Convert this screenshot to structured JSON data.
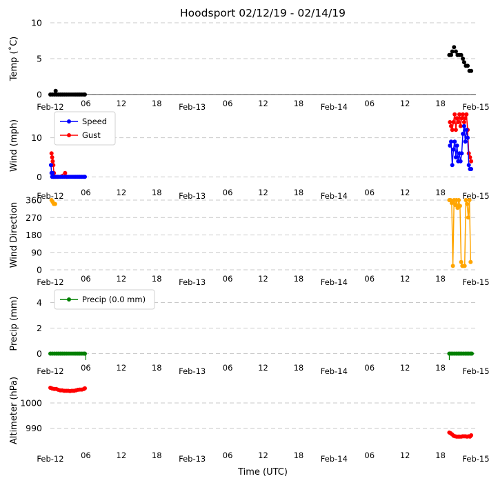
{
  "chart_data": {
    "title": "Hoodsport 02/12/19 - 02/14/19",
    "xlabel": "Time (UTC)",
    "x_unit": "hours since Feb-12 00:00 UTC",
    "x_range": [
      0,
      72
    ],
    "x_ticks": [
      {
        "h": 0,
        "label": "Feb-12"
      },
      {
        "h": 6,
        "label": "06"
      },
      {
        "h": 12,
        "label": "12"
      },
      {
        "h": 18,
        "label": "18"
      },
      {
        "h": 24,
        "label": "Feb-13"
      },
      {
        "h": 30,
        "label": "06"
      },
      {
        "h": 36,
        "label": "12"
      },
      {
        "h": 42,
        "label": "18"
      },
      {
        "h": 48,
        "label": "Feb-14"
      },
      {
        "h": 54,
        "label": "06"
      },
      {
        "h": 60,
        "label": "12"
      },
      {
        "h": 66,
        "label": "18"
      },
      {
        "h": 72,
        "label": "Feb-15"
      }
    ],
    "panels": [
      {
        "type": "scatter",
        "ylabel": "Temp ($^\\circ$C)",
        "ylabel_display": "Temp (˚C)",
        "ylim": [
          0,
          10
        ],
        "yticks": [
          0,
          5,
          10
        ],
        "grid": true,
        "series": [
          {
            "color": "#000000",
            "line": false,
            "points": [
              [
                0.0,
                0
              ],
              [
                0.33,
                0
              ],
              [
                0.67,
                0
              ],
              [
                0.9,
                0.5
              ],
              [
                1.0,
                0
              ],
              [
                1.33,
                0
              ],
              [
                1.67,
                0
              ],
              [
                2.0,
                0
              ],
              [
                2.33,
                0
              ],
              [
                2.67,
                0
              ],
              [
                3.0,
                0
              ],
              [
                3.33,
                0
              ],
              [
                3.67,
                0
              ],
              [
                4.0,
                0
              ],
              [
                4.33,
                0
              ],
              [
                4.67,
                0
              ],
              [
                5.0,
                0
              ],
              [
                5.33,
                0
              ],
              [
                5.67,
                0
              ],
              [
                5.83,
                0
              ],
              [
                67.5,
                5.5
              ],
              [
                67.8,
                5.5
              ],
              [
                68.0,
                6.0
              ],
              [
                68.3,
                6.6
              ],
              [
                68.6,
                6.0
              ],
              [
                68.9,
                5.5
              ],
              [
                69.2,
                5.5
              ],
              [
                69.5,
                5.5
              ],
              [
                69.8,
                5.0
              ],
              [
                70.0,
                4.5
              ],
              [
                70.3,
                4.0
              ],
              [
                70.6,
                4.0
              ],
              [
                70.9,
                3.3
              ],
              [
                71.2,
                3.3
              ]
            ]
          }
        ]
      },
      {
        "type": "line",
        "ylabel": "Wind (mph)",
        "ylim": [
          -1,
          17
        ],
        "yticks": [
          0,
          10
        ],
        "grid": true,
        "legend": "top-left",
        "series": [
          {
            "name": "Gust",
            "color": "#ff0000",
            "line": true,
            "points": [
              [
                0.2,
                6
              ],
              [
                0.3,
                5
              ],
              [
                0.4,
                4
              ],
              [
                0.5,
                3
              ],
              [
                0.6,
                1
              ],
              [
                0.8,
                0
              ],
              [
                1.2,
                0
              ],
              [
                2.5,
                1
              ],
              [
                2.8,
                0
              ]
            ]
          },
          {
            "name": "Speed",
            "color": "#0000ff",
            "line": true,
            "points": [
              [
                0.1,
                3
              ],
              [
                0.2,
                1
              ],
              [
                0.3,
                0
              ],
              [
                0.4,
                1
              ],
              [
                0.5,
                0
              ],
              [
                0.6,
                0
              ],
              [
                0.8,
                0
              ],
              [
                1.0,
                0
              ],
              [
                1.33,
                0
              ],
              [
                1.67,
                0
              ],
              [
                2.0,
                0
              ],
              [
                2.33,
                0
              ],
              [
                2.67,
                0
              ],
              [
                3.0,
                0
              ],
              [
                3.33,
                0
              ],
              [
                3.67,
                0
              ],
              [
                4.0,
                0
              ],
              [
                4.33,
                0
              ],
              [
                4.67,
                0
              ],
              [
                5.0,
                0
              ],
              [
                5.33,
                0
              ],
              [
                5.67,
                0
              ],
              [
                5.83,
                0
              ]
            ]
          },
          {
            "name": "Gust",
            "color": "#ff0000",
            "line": true,
            "points": [
              [
                67.6,
                14
              ],
              [
                67.8,
                13
              ],
              [
                68.0,
                12
              ],
              [
                68.2,
                14
              ],
              [
                68.4,
                16
              ],
              [
                68.6,
                12
              ],
              [
                68.8,
                15
              ],
              [
                69.0,
                14
              ],
              [
                69.2,
                16
              ],
              [
                69.4,
                13
              ],
              [
                69.6,
                15
              ],
              [
                69.8,
                16
              ],
              [
                70.0,
                14
              ],
              [
                70.2,
                15
              ],
              [
                70.4,
                16
              ],
              [
                70.6,
                12
              ],
              [
                70.8,
                6
              ],
              [
                71.0,
                5
              ],
              [
                71.2,
                4
              ]
            ]
          },
          {
            "name": "Speed",
            "color": "#0000ff",
            "line": true,
            "points": [
              [
                67.6,
                8
              ],
              [
                67.8,
                9
              ],
              [
                68.0,
                3
              ],
              [
                68.2,
                7
              ],
              [
                68.4,
                9
              ],
              [
                68.6,
                5
              ],
              [
                68.8,
                8
              ],
              [
                69.0,
                4
              ],
              [
                69.2,
                6
              ],
              [
                69.4,
                4
              ],
              [
                69.6,
                6
              ],
              [
                69.8,
                11
              ],
              [
                70.0,
                13
              ],
              [
                70.2,
                9
              ],
              [
                70.4,
                12
              ],
              [
                70.6,
                10
              ],
              [
                70.8,
                3
              ],
              [
                71.0,
                2
              ],
              [
                71.2,
                2
              ]
            ]
          }
        ],
        "legend_entries": [
          {
            "name": "Speed",
            "color": "#0000ff"
          },
          {
            "name": "Gust",
            "color": "#ff0000"
          }
        ]
      },
      {
        "type": "line",
        "ylabel": "Wind Direction",
        "ylim": [
          0,
          360
        ],
        "yticks": [
          0,
          90,
          180,
          270,
          360
        ],
        "grid": true,
        "series": [
          {
            "color": "#ffa500",
            "line": false,
            "points": [
              [
                0.2,
                360
              ],
              [
                0.4,
                350
              ],
              [
                0.6,
                340
              ],
              [
                0.8,
                340
              ]
            ]
          },
          {
            "color": "#ffa500",
            "line": true,
            "points": [
              [
                67.5,
                360
              ],
              [
                67.7,
                360
              ],
              [
                67.9,
                345
              ],
              [
                68.1,
                20
              ],
              [
                68.3,
                360
              ],
              [
                68.5,
                335
              ],
              [
                68.7,
                360
              ],
              [
                68.9,
                320
              ],
              [
                69.1,
                360
              ],
              [
                69.3,
                330
              ],
              [
                69.5,
                40
              ],
              [
                69.7,
                20
              ],
              [
                69.9,
                20
              ],
              [
                70.1,
                20
              ],
              [
                70.3,
                360
              ],
              [
                70.5,
                340
              ],
              [
                70.7,
                270
              ],
              [
                70.9,
                360
              ],
              [
                71.1,
                40
              ]
            ]
          }
        ]
      },
      {
        "type": "line",
        "ylabel": "Precip (mm)",
        "ylim": [
          -0.3,
          5
        ],
        "yticks": [
          0,
          2,
          4
        ],
        "grid": true,
        "legend": "top-left",
        "legend_entries": [
          {
            "name": "Precip (0.0 mm)",
            "color": "#008000"
          }
        ],
        "series": [
          {
            "name": "Precip (0.0 mm)",
            "color": "#008000",
            "line": true,
            "points": [
              [
                0.0,
                0
              ],
              [
                0.33,
                0
              ],
              [
                0.67,
                0
              ],
              [
                1.0,
                0
              ],
              [
                1.33,
                0
              ],
              [
                1.67,
                0
              ],
              [
                2.0,
                0
              ],
              [
                2.33,
                0
              ],
              [
                2.67,
                0
              ],
              [
                3.0,
                0
              ],
              [
                3.33,
                0
              ],
              [
                3.67,
                0
              ],
              [
                4.0,
                0
              ],
              [
                4.33,
                0
              ],
              [
                4.67,
                0
              ],
              [
                5.0,
                0
              ],
              [
                5.33,
                0
              ],
              [
                5.67,
                0
              ],
              [
                5.83,
                0
              ]
            ]
          },
          {
            "name": "Precip (0.0 mm)",
            "color": "#008000",
            "line": true,
            "points": [
              [
                67.5,
                0
              ],
              [
                67.8,
                0
              ],
              [
                68.1,
                0
              ],
              [
                68.4,
                0
              ],
              [
                68.7,
                0
              ],
              [
                69.0,
                0
              ],
              [
                69.3,
                0
              ],
              [
                69.6,
                0
              ],
              [
                69.9,
                0
              ],
              [
                70.2,
                0
              ],
              [
                70.5,
                0
              ],
              [
                70.8,
                0
              ],
              [
                71.1,
                0
              ],
              [
                71.3,
                0
              ]
            ]
          }
        ]
      },
      {
        "type": "scatter",
        "ylabel": "Altimeter (hPa)",
        "ylim": [
          982,
          1012
        ],
        "yticks": [
          990,
          1000
        ],
        "grid": true,
        "series": [
          {
            "color": "#ff0000",
            "line": false,
            "points": [
              [
                0.0,
                1006
              ],
              [
                0.33,
                1005.7
              ],
              [
                0.67,
                1005.5
              ],
              [
                1.0,
                1005.5
              ],
              [
                1.33,
                1005.2
              ],
              [
                1.67,
                1005
              ],
              [
                2.0,
                1005
              ],
              [
                2.33,
                1004.8
              ],
              [
                2.67,
                1004.8
              ],
              [
                3.0,
                1004.8
              ],
              [
                3.33,
                1004.7
              ],
              [
                3.67,
                1004.8
              ],
              [
                4.0,
                1004.8
              ],
              [
                4.33,
                1005
              ],
              [
                4.67,
                1005.2
              ],
              [
                5.0,
                1005.3
              ],
              [
                5.33,
                1005.3
              ],
              [
                5.67,
                1005.5
              ],
              [
                5.83,
                1005.8
              ],
              [
                67.5,
                988.3
              ],
              [
                67.75,
                988
              ],
              [
                68.0,
                987.5
              ],
              [
                68.25,
                987
              ],
              [
                68.5,
                986.8
              ],
              [
                68.75,
                986.7
              ],
              [
                69.0,
                986.7
              ],
              [
                69.25,
                986.7
              ],
              [
                69.5,
                986.7
              ],
              [
                69.75,
                986.8
              ],
              [
                70.0,
                986.8
              ],
              [
                70.25,
                986.8
              ],
              [
                70.5,
                986.7
              ],
              [
                70.75,
                986.8
              ],
              [
                71.0,
                986.7
              ],
              [
                71.2,
                987.2
              ]
            ]
          }
        ]
      }
    ]
  }
}
